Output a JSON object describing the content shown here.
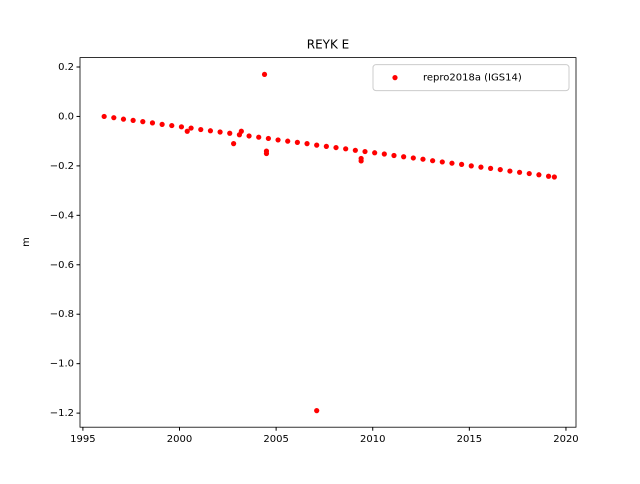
{
  "chart_data": {
    "type": "scatter",
    "title": "REYK E",
    "ylabel": "m",
    "series": [
      {
        "name": "repro2018a (IGS14)",
        "color": "#ff0000",
        "x": [
          1996.1,
          1996.6,
          1997.1,
          1997.6,
          1998.1,
          1998.6,
          1999.1,
          1999.6,
          2000.1,
          2000.6,
          2001.1,
          2001.6,
          2002.1,
          2002.6,
          2003.1,
          2003.6,
          2004.1,
          2004.6,
          2005.1,
          2005.6,
          2006.1,
          2006.6,
          2007.1,
          2007.6,
          2008.1,
          2008.6,
          2009.1,
          2009.6,
          2010.1,
          2010.6,
          2011.1,
          2011.6,
          2012.1,
          2012.6,
          2013.1,
          2013.6,
          2014.1,
          2014.6,
          2015.1,
          2015.6,
          2016.1,
          2016.6,
          2017.1,
          2017.6,
          2018.1,
          2018.6,
          2019.1,
          2004.4,
          2007.1,
          2004.5,
          2004.5,
          2003.2,
          2002.8,
          2009.4,
          2009.4,
          2000.4,
          2019.4
        ],
        "values": [
          0,
          -0.005,
          -0.011,
          -0.016,
          -0.021,
          -0.026,
          -0.032,
          -0.037,
          -0.042,
          -0.047,
          -0.053,
          -0.058,
          -0.063,
          -0.068,
          -0.074,
          -0.079,
          -0.084,
          -0.089,
          -0.095,
          -0.1,
          -0.105,
          -0.11,
          -0.116,
          -0.121,
          -0.126,
          -0.131,
          -0.137,
          -0.142,
          -0.147,
          -0.152,
          -0.158,
          -0.163,
          -0.168,
          -0.173,
          -0.179,
          -0.184,
          -0.189,
          -0.194,
          -0.2,
          -0.205,
          -0.21,
          -0.215,
          -0.221,
          -0.226,
          -0.231,
          -0.236,
          -0.242,
          0.17,
          -1.19,
          -0.14,
          -0.15,
          -0.06,
          -0.11,
          -0.18,
          -0.17,
          -0.06,
          -0.245
        ]
      }
    ],
    "xlim": [
      1994.85,
      2020.52
    ],
    "ylim": [
      -1.257,
      0.238
    ],
    "xticks": [
      1995,
      2000,
      2005,
      2010,
      2015,
      2020
    ],
    "yticks": [
      0.2,
      {
        "value": 0,
        "label": "0.0"
      },
      {
        "value": -0.2,
        "label": "−0.2"
      },
      {
        "value": -0.4,
        "label": "−0.4"
      },
      {
        "value": -0.6,
        "label": "−0.6"
      },
      {
        "value": -0.8,
        "label": "−0.8"
      },
      {
        "value": -1.0,
        "label": "−1.0"
      },
      {
        "value": -1.2,
        "label": "−1.2"
      }
    ],
    "legend": "upper right",
    "grid": false
  }
}
